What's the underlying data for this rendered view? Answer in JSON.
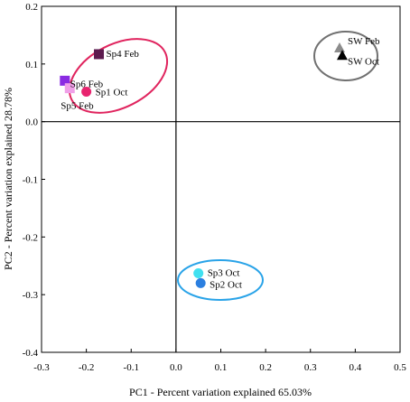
{
  "chart_data": {
    "type": "scatter",
    "title": "",
    "xlabel": "PC1 - Percent variation explained 65.03%",
    "ylabel": "PC2 - Percent variation explained 28.78%",
    "xlim": [
      -0.3,
      0.5
    ],
    "ylim": [
      -0.4,
      0.2
    ],
    "xticks": [
      -0.3,
      -0.2,
      -0.1,
      0.0,
      0.1,
      0.2,
      0.3,
      0.4,
      0.5
    ],
    "yticks": [
      -0.4,
      -0.3,
      -0.2,
      -0.1,
      0.0,
      0.1,
      0.2
    ],
    "xtick_labels": [
      "-0.3",
      "-0.2",
      "-0.1",
      "0.0",
      "0.1",
      "0.2",
      "0.3",
      "0.4",
      "0.5"
    ],
    "ytick_labels": [
      "-0.4",
      "-0.3",
      "-0.2",
      "-0.1",
      "0.0",
      "0.1",
      "0.2"
    ],
    "grid": false,
    "points": [
      {
        "label": "Sp4 Feb",
        "x": -0.172,
        "y": 0.117,
        "marker": "square",
        "color": "#5c1a4e"
      },
      {
        "label": "Sp6 Feb",
        "x": -0.248,
        "y": 0.071,
        "marker": "square",
        "color": "#8a2be2"
      },
      {
        "label": "Sp5 Feb",
        "x": -0.237,
        "y": 0.058,
        "marker": "square",
        "color": "#f0a0e8"
      },
      {
        "label": "Sp1 Oct",
        "x": -0.2,
        "y": 0.052,
        "marker": "circle",
        "color": "#e8246f"
      },
      {
        "label": "SW Feb",
        "x": 0.365,
        "y": 0.128,
        "marker": "triangle",
        "color": "#8c8c8c"
      },
      {
        "label": "SW Oct",
        "x": 0.371,
        "y": 0.115,
        "marker": "triangle",
        "color": "#000000"
      },
      {
        "label": "Sp3 Oct",
        "x": 0.05,
        "y": -0.263,
        "marker": "circle",
        "color": "#40e0f0"
      },
      {
        "label": "Sp2 Oct",
        "x": 0.055,
        "y": -0.28,
        "marker": "circle",
        "color": "#2b7fe0"
      }
    ],
    "groups": [
      {
        "members": [
          "Sp4 Feb",
          "Sp6 Feb",
          "Sp5 Feb",
          "Sp1 Oct"
        ],
        "color": "#e0245e"
      },
      {
        "members": [
          "SW Feb",
          "SW Oct"
        ],
        "color": "#707070"
      },
      {
        "members": [
          "Sp3 Oct",
          "Sp2 Oct"
        ],
        "color": "#29a3e8"
      }
    ]
  }
}
